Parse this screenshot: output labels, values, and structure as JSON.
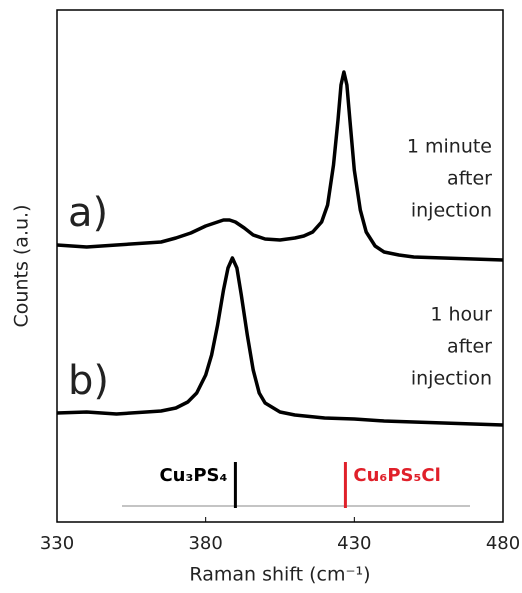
{
  "chart_data": {
    "type": "line",
    "xlabel": "Raman shift (cm⁻¹)",
    "ylabel": "Counts (a.u.)",
    "xlim": [
      330,
      480
    ],
    "xticks": [
      330,
      380,
      430,
      480
    ],
    "ylim": [
      0,
      512
    ],
    "series": [
      {
        "name": "a)",
        "color": "#000000",
        "note": [
          "1 minute",
          "after",
          "injection"
        ],
        "x": [
          330,
          340,
          350,
          360,
          365,
          370,
          375,
          380,
          383,
          386,
          388,
          390,
          393,
          396,
          400,
          405,
          410,
          413,
          416,
          419,
          421,
          423,
          424.5,
          425.5,
          426.5,
          427.5,
          428.5,
          430,
          432,
          434,
          437,
          440,
          445,
          450,
          460,
          470,
          480
        ],
        "values": [
          277,
          275,
          277,
          279,
          280,
          284,
          289,
          296,
          299,
          302,
          302,
          300,
          294,
          287,
          283,
          282,
          284,
          286,
          290,
          300,
          317,
          357,
          402,
          437,
          450,
          437,
          402,
          352,
          312,
          290,
          276,
          270,
          267,
          265,
          264,
          263,
          262
        ]
      },
      {
        "name": "b)",
        "color": "#000000",
        "note": [
          "1 hour",
          "after",
          "injection"
        ],
        "x": [
          330,
          340,
          350,
          360,
          365,
          370,
          374,
          377,
          380,
          382,
          384,
          386,
          387.5,
          389,
          390.5,
          392,
          394,
          396,
          398,
          400,
          405,
          410,
          420,
          430,
          440,
          450,
          460,
          470,
          480
        ],
        "values": [
          109,
          110,
          108,
          110,
          111,
          114,
          120,
          129,
          147,
          167,
          197,
          232,
          254,
          264,
          254,
          227,
          187,
          152,
          129,
          119,
          110,
          107,
          104,
          103,
          101,
          100,
          99,
          98,
          97
        ]
      }
    ],
    "references": [
      {
        "label": "Cu₃PS₄",
        "x": 390,
        "color": "#000000"
      },
      {
        "label": "Cu₆PS₅Cl",
        "x": 427,
        "color": "#e0202a"
      }
    ]
  }
}
